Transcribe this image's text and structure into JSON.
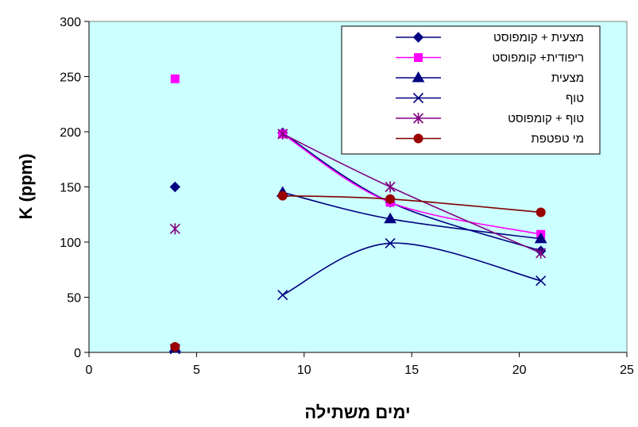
{
  "chart_data": {
    "type": "scatter",
    "title": "",
    "xlabel": "ימים משתילה",
    "ylabel": "K (ppm)",
    "xlim": [
      0,
      25
    ],
    "ylim": [
      0,
      300
    ],
    "xticks": [
      0,
      5,
      10,
      15,
      20,
      25
    ],
    "yticks": [
      0,
      50,
      100,
      150,
      200,
      250,
      300
    ],
    "plot_background": "#ccffff",
    "grid": false,
    "legend_position": "top-right",
    "series": [
      {
        "name": "מצעית + קומפוסט",
        "color": "#000080",
        "marker": "diamond",
        "marker_color": "#000080",
        "points": [
          [
            4,
            150
          ],
          [
            9,
            199
          ],
          [
            14,
            136
          ],
          [
            21,
            92
          ]
        ],
        "line_from": 1
      },
      {
        "name": "ריפודית+ קומפוסט",
        "color": "#ff00ff",
        "marker": "square",
        "marker_color": "#ff00ff",
        "points": [
          [
            4,
            248
          ],
          [
            9,
            198
          ],
          [
            14,
            136
          ],
          [
            21,
            107
          ]
        ],
        "line_from": 1
      },
      {
        "name": "מצעית",
        "color": "#000080",
        "marker": "triangle",
        "marker_color": "#000080",
        "points": [
          [
            4,
            4
          ],
          [
            9,
            145
          ],
          [
            14,
            121
          ],
          [
            21,
            103
          ]
        ],
        "line_from": 1
      },
      {
        "name": "טוף",
        "color": "#000080",
        "marker": "x",
        "marker_color": "#000080",
        "points": [
          [
            4,
            3
          ],
          [
            9,
            52
          ],
          [
            14,
            99
          ],
          [
            21,
            65
          ]
        ],
        "line_from": 1
      },
      {
        "name": "טוף + קומפוסט",
        "color": "#800080",
        "marker": "star",
        "marker_color": "#800080",
        "points": [
          [
            4,
            112
          ],
          [
            9,
            198
          ],
          [
            14,
            150
          ],
          [
            21,
            90
          ]
        ],
        "line_from": 1
      },
      {
        "name": "מי טפטפת",
        "color": "#800000",
        "marker": "circle",
        "marker_color": "#990000",
        "points": [
          [
            4,
            5
          ],
          [
            9,
            142
          ],
          [
            14,
            139
          ],
          [
            21,
            127
          ]
        ],
        "line_from": 1
      }
    ]
  }
}
